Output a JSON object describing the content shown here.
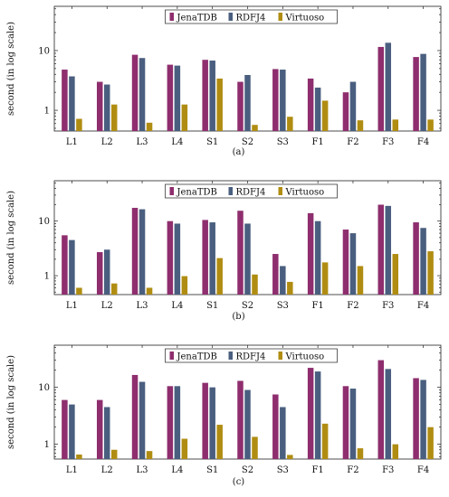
{
  "colors": {
    "JenaTDB": "#8e2e6e",
    "RDFJ4": "#4a5f7f",
    "Virtuoso": "#b08d12"
  },
  "chart_data": [
    {
      "type": "bar",
      "caption": "(a)",
      "ylabel": "second (in log scale)",
      "yscale": "log",
      "ylim": [
        0.45,
        55
      ],
      "yticks": [
        1,
        10
      ],
      "ytick_labels": [
        "1",
        "10"
      ],
      "legend_placement": "top-center",
      "categories": [
        "L1",
        "L2",
        "L3",
        "L4",
        "S1",
        "S2",
        "S3",
        "F1",
        "F2",
        "F3",
        "F4"
      ],
      "series": [
        {
          "name": "JenaTDB",
          "values": [
            4.8,
            3.0,
            8.5,
            5.8,
            7.0,
            3.0,
            4.9,
            3.4,
            2.0,
            11.5,
            7.8
          ]
        },
        {
          "name": "RDFJ4",
          "values": [
            3.7,
            2.7,
            7.5,
            5.6,
            6.8,
            3.9,
            4.8,
            2.4,
            3.0,
            13.5,
            8.8
          ]
        },
        {
          "name": "Virtuoso",
          "values": [
            0.72,
            1.25,
            0.62,
            1.25,
            3.4,
            0.57,
            0.78,
            1.45,
            0.68,
            0.7,
            0.7
          ]
        }
      ]
    },
    {
      "type": "bar",
      "caption": "(b)",
      "ylabel": "second (in log scale)",
      "yscale": "log",
      "ylim": [
        0.45,
        55
      ],
      "yticks": [
        1,
        10
      ],
      "ytick_labels": [
        "1",
        "10"
      ],
      "legend_placement": "top-center",
      "categories": [
        "L1",
        "L2",
        "L3",
        "L4",
        "S1",
        "S2",
        "S3",
        "F1",
        "F2",
        "F3",
        "F4"
      ],
      "series": [
        {
          "name": "JenaTDB",
          "values": [
            5.5,
            2.7,
            17.5,
            10.0,
            10.5,
            15.5,
            2.5,
            14.0,
            7.0,
            20.0,
            9.5
          ]
        },
        {
          "name": "RDFJ4",
          "values": [
            4.5,
            3.0,
            16.5,
            9.0,
            9.5,
            9.0,
            1.5,
            10.0,
            6.0,
            19.0,
            7.5
          ]
        },
        {
          "name": "Virtuoso",
          "values": [
            0.6,
            0.72,
            0.6,
            0.98,
            2.1,
            1.05,
            0.77,
            1.75,
            1.5,
            2.5,
            2.8
          ]
        }
      ]
    },
    {
      "type": "bar",
      "caption": "(c)",
      "ylabel": "second (in log scale)",
      "yscale": "log",
      "ylim": [
        0.55,
        55
      ],
      "yticks": [
        1,
        10
      ],
      "ytick_labels": [
        "1",
        "10"
      ],
      "legend_placement": "top-center",
      "categories": [
        "L1",
        "L2",
        "L3",
        "L4",
        "S1",
        "S2",
        "S3",
        "F1",
        "F2",
        "F3",
        "F4"
      ],
      "series": [
        {
          "name": "JenaTDB",
          "values": [
            6.0,
            6.0,
            16.5,
            10.5,
            12.0,
            13.0,
            7.5,
            22.0,
            10.5,
            30.0,
            14.5
          ]
        },
        {
          "name": "RDFJ4",
          "values": [
            5.0,
            4.5,
            12.5,
            10.5,
            10.0,
            9.0,
            4.5,
            19.0,
            9.5,
            21.0,
            13.5
          ]
        },
        {
          "name": "Virtuoso",
          "values": [
            0.66,
            0.8,
            0.76,
            1.25,
            2.2,
            1.35,
            0.65,
            2.3,
            0.85,
            1.0,
            2.0
          ]
        }
      ]
    }
  ]
}
